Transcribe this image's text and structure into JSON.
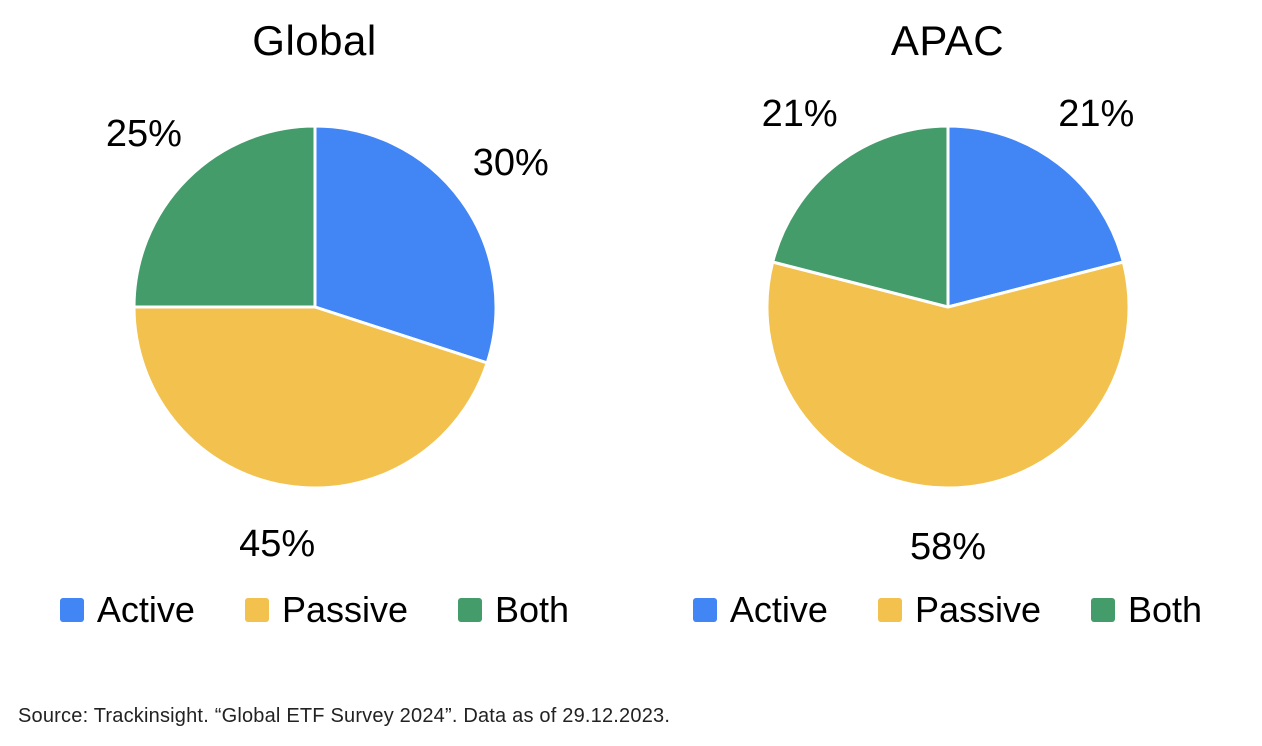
{
  "page": {
    "source_note": "Source: Trackinsight. “Global ETF Survey 2024”. Data as of 29.12.2023."
  },
  "colors": {
    "active": "#4285F4",
    "passive": "#F2C14E",
    "both": "#449C6B",
    "slice_border": "#FFFFFF",
    "text": "#000000"
  },
  "chart_data": [
    {
      "type": "pie",
      "title": "Global",
      "labels": [
        "Active",
        "Passive",
        "Both"
      ],
      "values": [
        30,
        45,
        25
      ],
      "value_labels": [
        "30%",
        "45%",
        "25%"
      ],
      "colors": [
        "#4285F4",
        "#F2C14E",
        "#449C6B"
      ],
      "start_angle_deg": 0,
      "direction": "clockwise",
      "legend_position": "bottom"
    },
    {
      "type": "pie",
      "title": "APAC",
      "labels": [
        "Active",
        "Passive",
        "Both"
      ],
      "values": [
        21,
        58,
        21
      ],
      "value_labels": [
        "21%",
        "58%",
        "21%"
      ],
      "colors": [
        "#4285F4",
        "#F2C14E",
        "#449C6B"
      ],
      "start_angle_deg": 0,
      "direction": "clockwise",
      "legend_position": "bottom"
    }
  ]
}
